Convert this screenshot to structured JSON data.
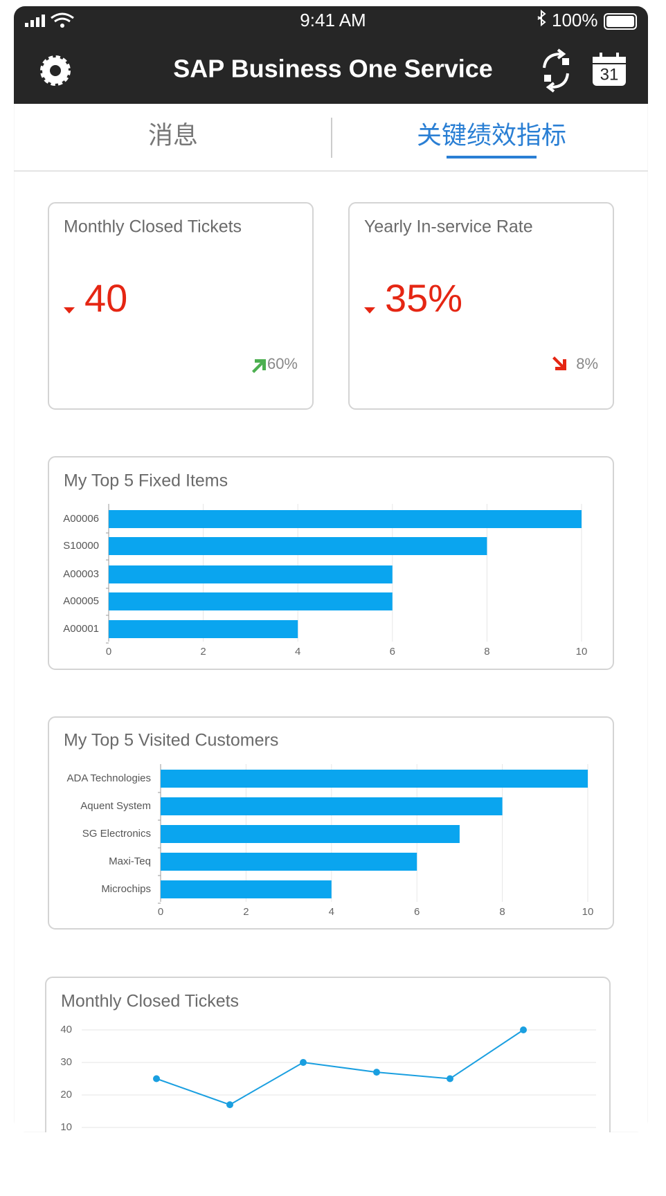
{
  "status_bar": {
    "time": "9:41 AM",
    "battery": "100%"
  },
  "header": {
    "title": "SAP Business One Service",
    "calendar_day": "31"
  },
  "tabs": [
    "消息",
    "关键绩效指标"
  ],
  "kpis": [
    {
      "title": "Monthly Closed Tickets",
      "value": "40",
      "change": "60%"
    },
    {
      "title": "Yearly In-service Rate",
      "value": "35%",
      "change": "8%"
    }
  ],
  "chart_data": [
    {
      "type": "hbar",
      "title": "My Top 5 Fixed Items",
      "categories": [
        "A00006",
        "S10000",
        "A00003",
        "A00005",
        "A00001"
      ],
      "values": [
        10,
        8,
        6,
        6,
        4
      ],
      "color": "#0aa5ef",
      "xlim": [
        0,
        10
      ],
      "xticks": [
        0,
        2,
        4,
        6,
        8,
        10
      ],
      "grid": true
    },
    {
      "type": "hbar",
      "title": "My Top 5 Visited Customers",
      "categories": [
        "ADA Technologies",
        "Aquent System",
        "SG Electronics",
        "Maxi-Teq",
        "Microchips"
      ],
      "values": [
        10,
        8,
        7,
        6,
        4
      ],
      "color": "#0aa5ef",
      "xlim": [
        0,
        10
      ],
      "xticks": [
        0,
        2,
        4,
        6,
        8,
        10
      ],
      "grid": true
    },
    {
      "type": "line",
      "title": "Monthly Closed Tickets",
      "categories": [
        null,
        null,
        null,
        null,
        null,
        null
      ],
      "values": [
        25,
        17,
        30,
        27,
        25,
        40
      ],
      "color": "#1a9fe0",
      "ylim": [
        10,
        40
      ],
      "yticks": [
        10,
        20,
        30,
        40
      ],
      "grid": true
    }
  ]
}
